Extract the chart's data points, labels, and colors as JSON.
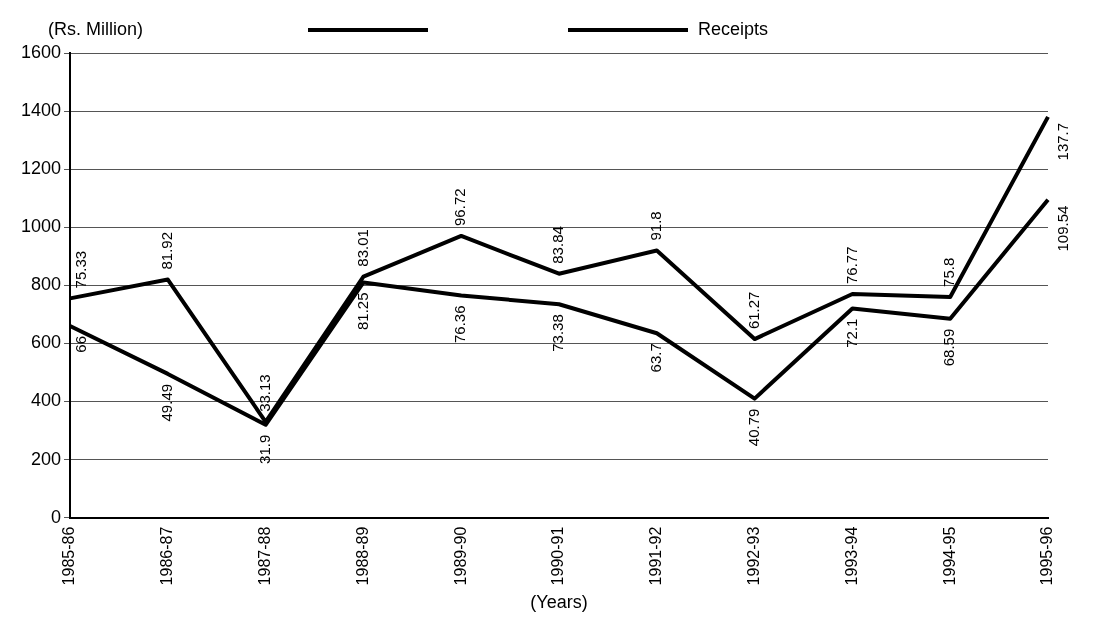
{
  "chart_data": {
    "type": "line",
    "ylabel": "(Rs. Million)",
    "xlabel": "(Years)",
    "categories": [
      "1985-86",
      "1986-87",
      "1987-88",
      "1988-89",
      "1989-90",
      "1990-91",
      "1991-92",
      "1992-93",
      "1993-94",
      "1994-95",
      "1995-96"
    ],
    "series": [
      {
        "color": "#000000",
        "values": [
          755,
          820,
          330,
          830,
          970,
          840,
          920,
          615,
          770,
          760,
          1380
        ]
      },
      {
        "name": "Receipts",
        "color": "#000000",
        "values": [
          660,
          495,
          320,
          810,
          765,
          735,
          635,
          410,
          720,
          685,
          1095
        ]
      }
    ],
    "annotations": [
      {
        "text": "75.33",
        "x": "1985-86",
        "y": 755
      },
      {
        "text": "81.92",
        "x": "1986-87",
        "y": 820
      },
      {
        "text": "33.13",
        "x": "1987-88",
        "y": 330
      },
      {
        "text": "83.01",
        "x": "1988-89",
        "y": 830
      },
      {
        "text": "96.72",
        "x": "1989-90",
        "y": 970
      },
      {
        "text": "83.84",
        "x": "1990-91",
        "y": 840
      },
      {
        "text": "91.8",
        "x": "1991-92",
        "y": 920
      },
      {
        "text": "61.27",
        "x": "1992-93",
        "y": 615
      },
      {
        "text": "76.77",
        "x": "1993-94",
        "y": 770
      },
      {
        "text": "75.8",
        "x": "1994-95",
        "y": 760
      },
      {
        "text": "137.7",
        "x": "1995-96",
        "y": 1380
      },
      {
        "text": "66",
        "x": "1985-86",
        "y": 660
      },
      {
        "text": "49.49",
        "x": "1986-87",
        "y": 495
      },
      {
        "text": "31.9",
        "x": "1987-88",
        "y": 320
      },
      {
        "text": "81.25",
        "x": "1988-89",
        "y": 810
      },
      {
        "text": "76.36",
        "x": "1989-90",
        "y": 765
      },
      {
        "text": "73.38",
        "x": "1990-91",
        "y": 735
      },
      {
        "text": "63.7",
        "x": "1991-92",
        "y": 635
      },
      {
        "text": "40.79",
        "x": "1992-93",
        "y": 410
      },
      {
        "text": "72.1",
        "x": "1993-94",
        "y": 720
      },
      {
        "text": "68.59",
        "x": "1994-95",
        "y": 685
      },
      {
        "text": "109.54",
        "x": "1995-96",
        "y": 1095
      }
    ],
    "ylim": [
      0,
      1600
    ],
    "yticks": [
      0,
      200,
      400,
      600,
      800,
      1000,
      1200,
      1400,
      1600
    ],
    "grid": "y",
    "legend": "top",
    "marker": "none",
    "line_style": "solid"
  }
}
